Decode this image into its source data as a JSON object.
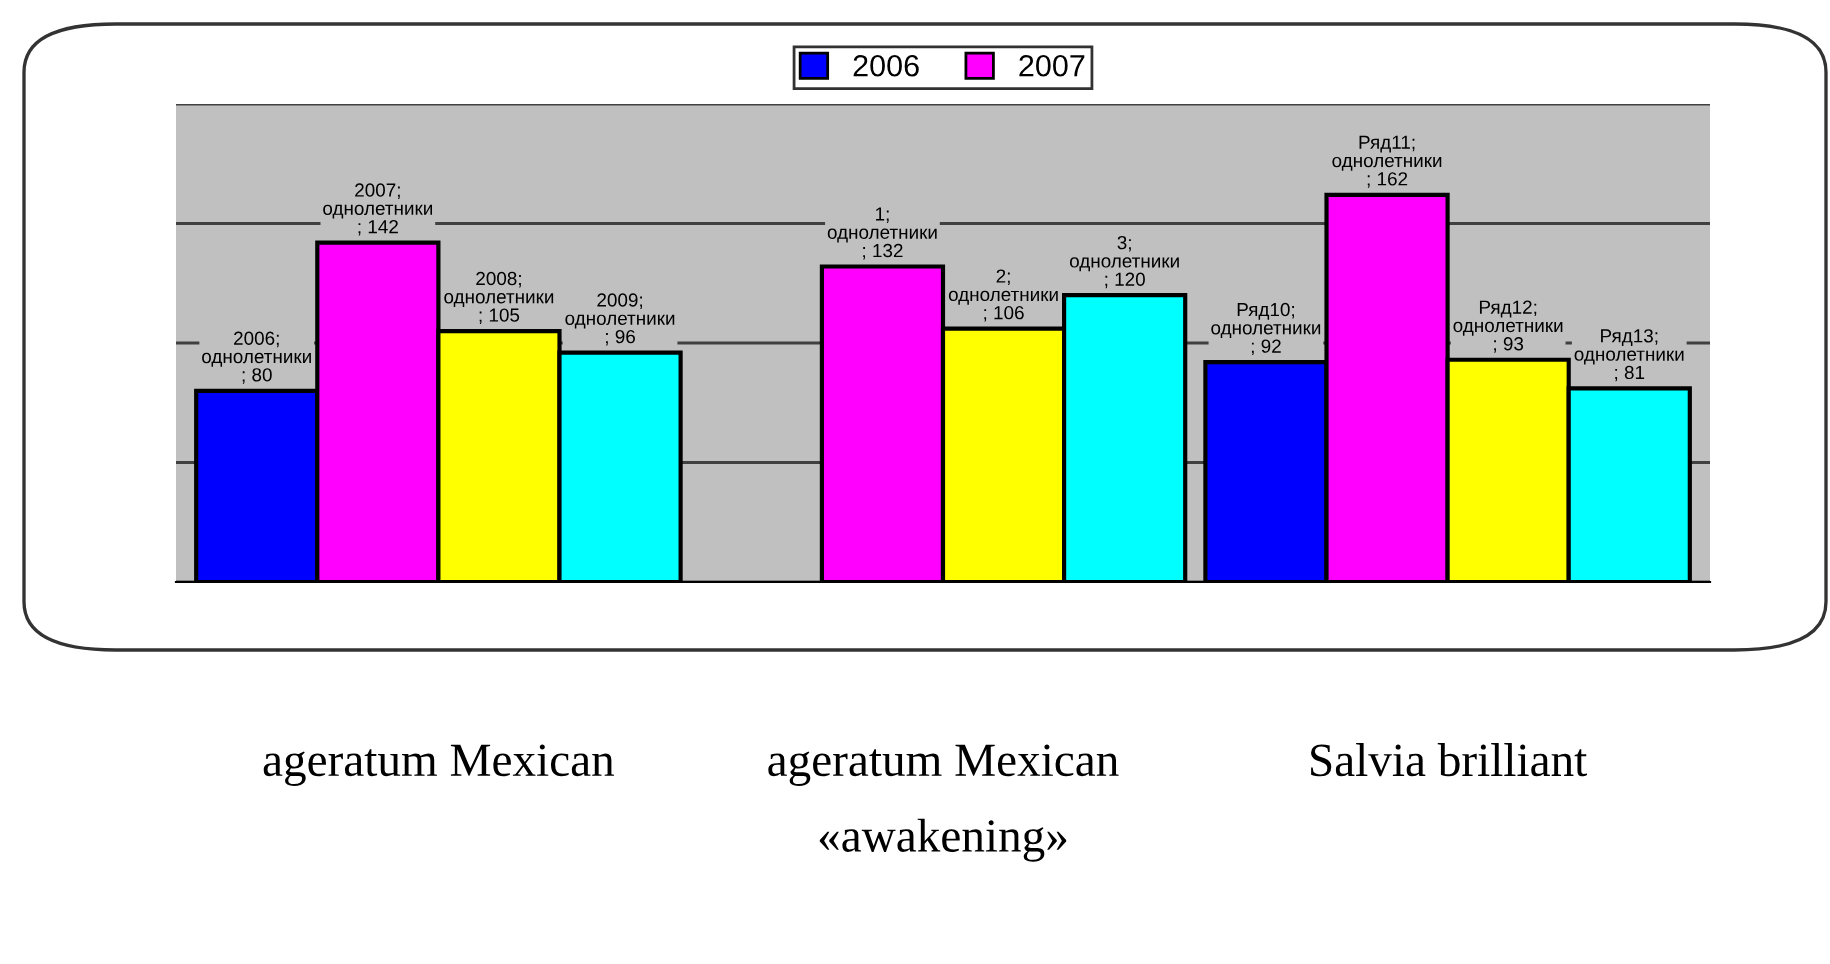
{
  "chart_data": {
    "type": "bar",
    "categories": [
      "ageratum Mexican",
      "ageratum Mexican\n«awakening»",
      "Salvia brilliant"
    ],
    "series": [
      {
        "name": "2006",
        "color": "#0000ff",
        "values": [
          80,
          null,
          92
        ],
        "value_labels": [
          "2006;\nоднолетники\n; 80",
          null,
          "Ряд10;\nоднолетники\n; 92"
        ]
      },
      {
        "name": "2007",
        "color": "#ff00ff",
        "values": [
          142,
          132,
          162
        ],
        "value_labels": [
          "2007;\nоднолетники\n; 142",
          "1;\nоднолетники\n; 132",
          "Ряд11;\nоднолетники\n; 162"
        ]
      },
      {
        "color": "#ffff00",
        "values": [
          105,
          106,
          93
        ],
        "value_labels": [
          "2008;\nоднолетники\n; 105",
          "2;\nоднолетники\n; 106",
          "Ряд12;\nоднолетники\n; 93"
        ]
      },
      {
        "color": "#00ffff",
        "values": [
          96,
          120,
          81
        ],
        "value_labels": [
          "2009;\nоднолетники\n; 96",
          "3;\nоднолетники\n; 120",
          "Ряд13;\nоднолетники\n; 81"
        ]
      }
    ],
    "ylim": [
      0,
      200
    ],
    "yticks": [
      {
        "value": 0,
        "label": null
      },
      {
        "value": 50,
        "label": null
      },
      {
        "value": 100,
        "label": null
      },
      {
        "value": 150,
        "label": null
      },
      {
        "value": 200,
        "label": null
      }
    ],
    "grid": "y",
    "legend": "top"
  }
}
